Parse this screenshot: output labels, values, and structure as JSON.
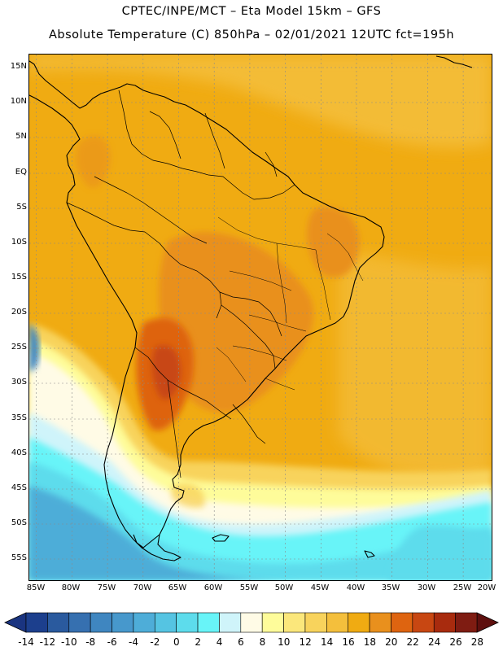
{
  "header": {
    "line1": "CPTEC/INPE/MCT –  Eta Model 15km – GFS",
    "line2": "Absolute Temperature (C) 850hPa – 02/01/2021 12UTC fct=195h"
  },
  "map": {
    "lat_labels": [
      "15N",
      "10N",
      "5N",
      "EQ",
      "5S",
      "10S",
      "15S",
      "20S",
      "25S",
      "30S",
      "35S",
      "40S",
      "45S",
      "50S",
      "55S"
    ],
    "lon_labels": [
      "85W",
      "80W",
      "75W",
      "70W",
      "65W",
      "60W",
      "55W",
      "50W",
      "45W",
      "40W",
      "35W",
      "30W",
      "25W",
      "20W"
    ],
    "lat_range": [
      15.5,
      -57.5
    ],
    "lon_range": [
      -85,
      -20
    ]
  },
  "colorbar": {
    "labels": [
      "-14",
      "-12",
      "-10",
      "-8",
      "-6",
      "-4",
      "-2",
      "0",
      "2",
      "4",
      "6",
      "8",
      "10",
      "12",
      "14",
      "16",
      "18",
      "20",
      "22",
      "24",
      "26",
      "28"
    ],
    "colors": [
      "#1c3f8d",
      "#2a5a9e",
      "#3670b0",
      "#3f86c0",
      "#4798cc",
      "#4eadd8",
      "#55c4e2",
      "#5ddcec",
      "#68f4f8",
      "#cff4fa",
      "#fffbe6",
      "#fefc9a",
      "#fbe77b",
      "#f8d35c",
      "#f4bf3c",
      "#f0ab12",
      "#e9901d",
      "#de6410",
      "#c84712",
      "#a82b0e",
      "#7f1c12"
    ],
    "under_color": "#1a3480",
    "over_color": "#5e0f0e"
  }
}
